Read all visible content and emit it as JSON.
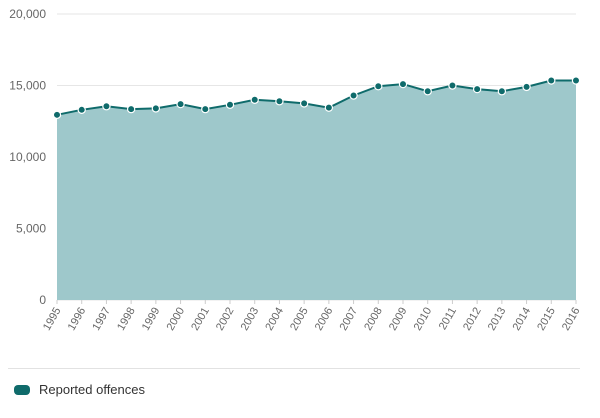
{
  "chart_data": {
    "type": "area",
    "x": [
      "1995",
      "1996",
      "1997",
      "1998",
      "1999",
      "2000",
      "2001",
      "2002",
      "2003",
      "2004",
      "2005",
      "2006",
      "2007",
      "2008",
      "2009",
      "2010",
      "2011",
      "2012",
      "2013",
      "2014",
      "2015",
      "2016"
    ],
    "series": [
      {
        "name": "Reported offences",
        "values": [
          12950,
          13300,
          13550,
          13350,
          13400,
          13700,
          13350,
          13650,
          14000,
          13900,
          13750,
          13450,
          14300,
          14950,
          15100,
          14600,
          15000,
          14750,
          14600,
          14900,
          15350,
          15350
        ]
      }
    ],
    "ylim": [
      0,
      20000
    ],
    "yticks": [
      "0",
      "5,000",
      "10,000",
      "15,000",
      "20,000"
    ],
    "ytick_values": [
      0,
      5000,
      10000,
      15000,
      20000
    ],
    "grid": true,
    "legend_position": "bottom-left"
  },
  "colors": {
    "line": "#0f6b6b",
    "fill": "#9ec8cb",
    "marker": "#0f6b6b",
    "marker_stroke": "#ffffff",
    "grid": "#e6e6e6",
    "legend_swatch": "#0f6b6b"
  }
}
